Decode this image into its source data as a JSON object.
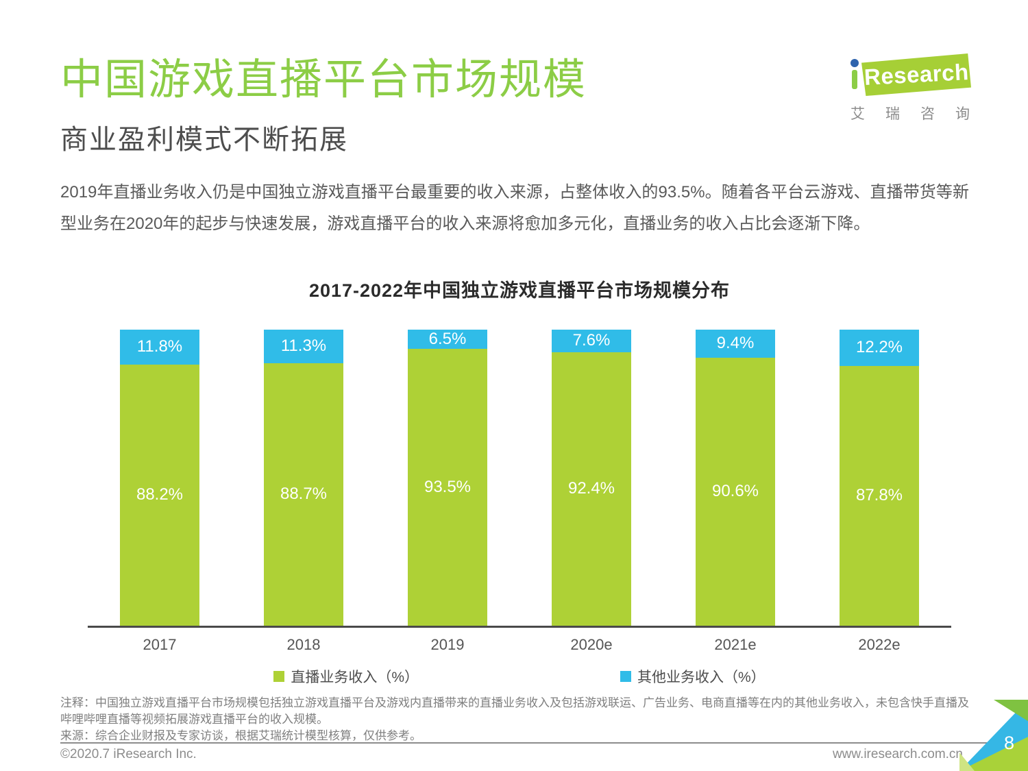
{
  "header": {
    "title": "中国游戏直播平台市场规模",
    "subtitle": "商业盈利模式不断拓展"
  },
  "logo": {
    "brand": "Research",
    "brand_cn": "艾瑞咨询"
  },
  "intro": {
    "text": "2019年直播业务收入仍是中国独立游戏直播平台最重要的收入来源，占整体收入的93.5%。随着各平台云游戏、直播带货等新型业务在2020年的起步与快速发展，游戏直播平台的收入来源将愈加多元化，直播业务的收入占比会逐渐下降。"
  },
  "chart_data": {
    "type": "bar",
    "stacked": true,
    "percent_stacked": true,
    "title": "2017-2022年中国独立游戏直播平台市场规模分布",
    "categories": [
      "2017",
      "2018",
      "2019",
      "2020e",
      "2021e",
      "2022e"
    ],
    "series": [
      {
        "name": "直播业务收入（%）",
        "color": "#aed136",
        "values": [
          88.2,
          88.7,
          93.5,
          92.4,
          90.6,
          87.8
        ]
      },
      {
        "name": "其他业务收入（%）",
        "color": "#30bce8",
        "values": [
          11.8,
          11.3,
          6.5,
          7.6,
          9.4,
          12.2
        ]
      }
    ],
    "ylim": [
      0,
      100
    ],
    "unit": "%",
    "grid": false,
    "legend_position": "bottom",
    "value_label_color": "#ffffff"
  },
  "notes": {
    "note": "注释：中国独立游戏直播平台市场规模包括独立游戏直播平台及游戏内直播带来的直播业务收入及包括游戏联运、广告业务、电商直播等在内的其他业务收入，未包含快手直播及哔哩哔哩直播等视频拓展游戏直播平台的收入规模。",
    "source": "来源：综合企业财报及专家访谈，根据艾瑞统计模型核算，仅供参考。"
  },
  "footer": {
    "copyright": "©2020.7 iResearch Inc.",
    "website": "www.iresearch.com.cn",
    "page_number": "8"
  },
  "colors": {
    "title_green": "#8ccd46",
    "bar_green": "#aed136",
    "bar_blue": "#30bce8",
    "axis_line": "#4a4a4a"
  }
}
